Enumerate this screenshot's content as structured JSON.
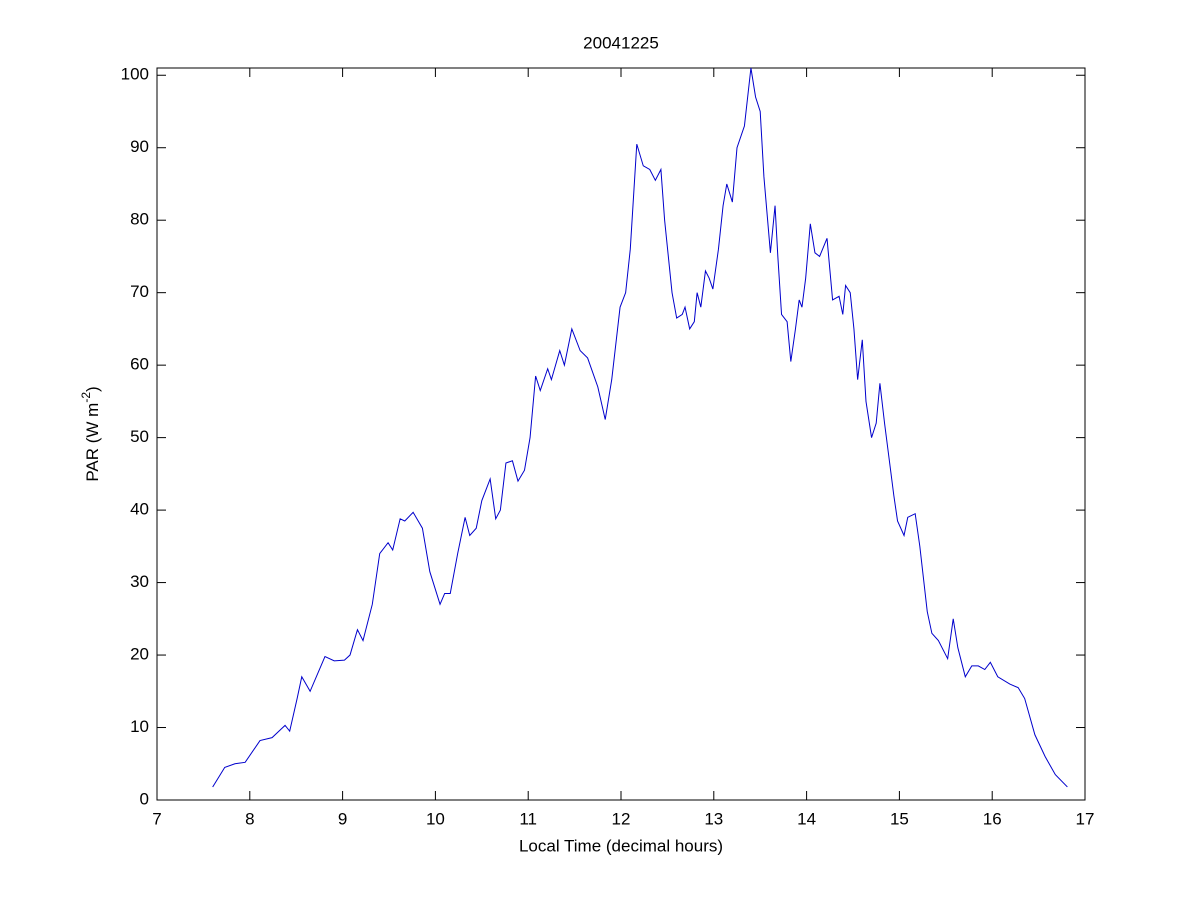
{
  "chart_data": {
    "type": "line",
    "title": "20041225",
    "xlabel": "Local Time (decimal hours)",
    "ylabel": {
      "text": "PAR (W m",
      "superscript": "-2",
      "suffix": ")"
    },
    "xlim": [
      7,
      17
    ],
    "xticks": [
      7,
      8,
      9,
      10,
      11,
      12,
      13,
      14,
      15,
      16,
      17
    ],
    "ylim": [
      0,
      101
    ],
    "yticks": [
      0,
      10,
      20,
      30,
      40,
      50,
      60,
      70,
      80,
      90,
      100
    ],
    "grid": false,
    "series": [
      {
        "color": "#0000cc",
        "x": [
          7.6,
          7.73,
          7.84,
          7.95,
          8.11,
          8.24,
          8.38,
          8.43,
          8.51,
          8.56,
          8.65,
          8.81,
          8.91,
          9.02,
          9.08,
          9.16,
          9.22,
          9.32,
          9.4,
          9.49,
          9.54,
          9.62,
          9.67,
          9.76,
          9.86,
          9.94,
          10.05,
          10.1,
          10.16,
          10.24,
          10.32,
          10.37,
          10.44,
          10.5,
          10.59,
          10.65,
          10.7,
          10.76,
          10.83,
          10.89,
          10.96,
          11.02,
          11.08,
          11.13,
          11.21,
          11.25,
          11.34,
          11.39,
          11.47,
          11.56,
          11.64,
          11.75,
          11.83,
          11.9,
          11.99,
          12.05,
          12.1,
          12.17,
          12.24,
          12.31,
          12.37,
          12.43,
          12.47,
          12.55,
          12.6,
          12.66,
          12.69,
          12.74,
          12.79,
          12.82,
          12.86,
          12.91,
          12.95,
          12.99,
          13.05,
          13.1,
          13.14,
          13.2,
          13.25,
          13.33,
          13.4,
          13.45,
          13.5,
          13.54,
          13.61,
          13.66,
          13.69,
          13.73,
          13.79,
          13.83,
          13.88,
          13.92,
          13.95,
          13.99,
          14.04,
          14.09,
          14.14,
          14.22,
          14.28,
          14.35,
          14.39,
          14.42,
          14.47,
          14.51,
          14.55,
          14.6,
          14.64,
          14.7,
          14.75,
          14.79,
          14.84,
          14.9,
          14.94,
          14.98,
          15.05,
          15.09,
          15.17,
          15.22,
          15.3,
          15.35,
          15.42,
          15.52,
          15.58,
          15.63,
          15.71,
          15.78,
          15.85,
          15.92,
          15.98,
          16.06,
          16.19,
          16.28,
          16.35,
          16.46,
          16.57,
          16.68,
          16.81
        ],
        "values": [
          1.8,
          4.5,
          5.0,
          5.2,
          8.2,
          8.6,
          10.3,
          9.5,
          14,
          17,
          15,
          19.8,
          19.2,
          19.3,
          20,
          23.5,
          22,
          27,
          34,
          35.5,
          34.5,
          38.8,
          38.5,
          39.7,
          37.5,
          31.5,
          27,
          28.5,
          28.5,
          34,
          39,
          36.5,
          37.5,
          41.3,
          44.3,
          38.8,
          40,
          46.5,
          46.8,
          44,
          45.5,
          50,
          58.5,
          56.5,
          59.5,
          58,
          62,
          60,
          65,
          62,
          61,
          57,
          52.5,
          58,
          68,
          70,
          76,
          90.5,
          87.5,
          87,
          85.5,
          87,
          80,
          70,
          66.5,
          67,
          68,
          65,
          66,
          70,
          68,
          73,
          72,
          70.5,
          76,
          82,
          85,
          82.5,
          90,
          93,
          101,
          97,
          95,
          86,
          75.5,
          82,
          75,
          67,
          66,
          60.5,
          65,
          69,
          68,
          72,
          79.5,
          75.5,
          75,
          77.5,
          69,
          69.5,
          67,
          71,
          70,
          65,
          58,
          63.5,
          55,
          50,
          52,
          57.5,
          52,
          46,
          42,
          38.5,
          36.5,
          39,
          39.5,
          35,
          26,
          23,
          22,
          19.5,
          25,
          21,
          17,
          18.5,
          18.5,
          18,
          19,
          17,
          16,
          15.5,
          14,
          9,
          6,
          3.5,
          1.8
        ]
      }
    ]
  }
}
